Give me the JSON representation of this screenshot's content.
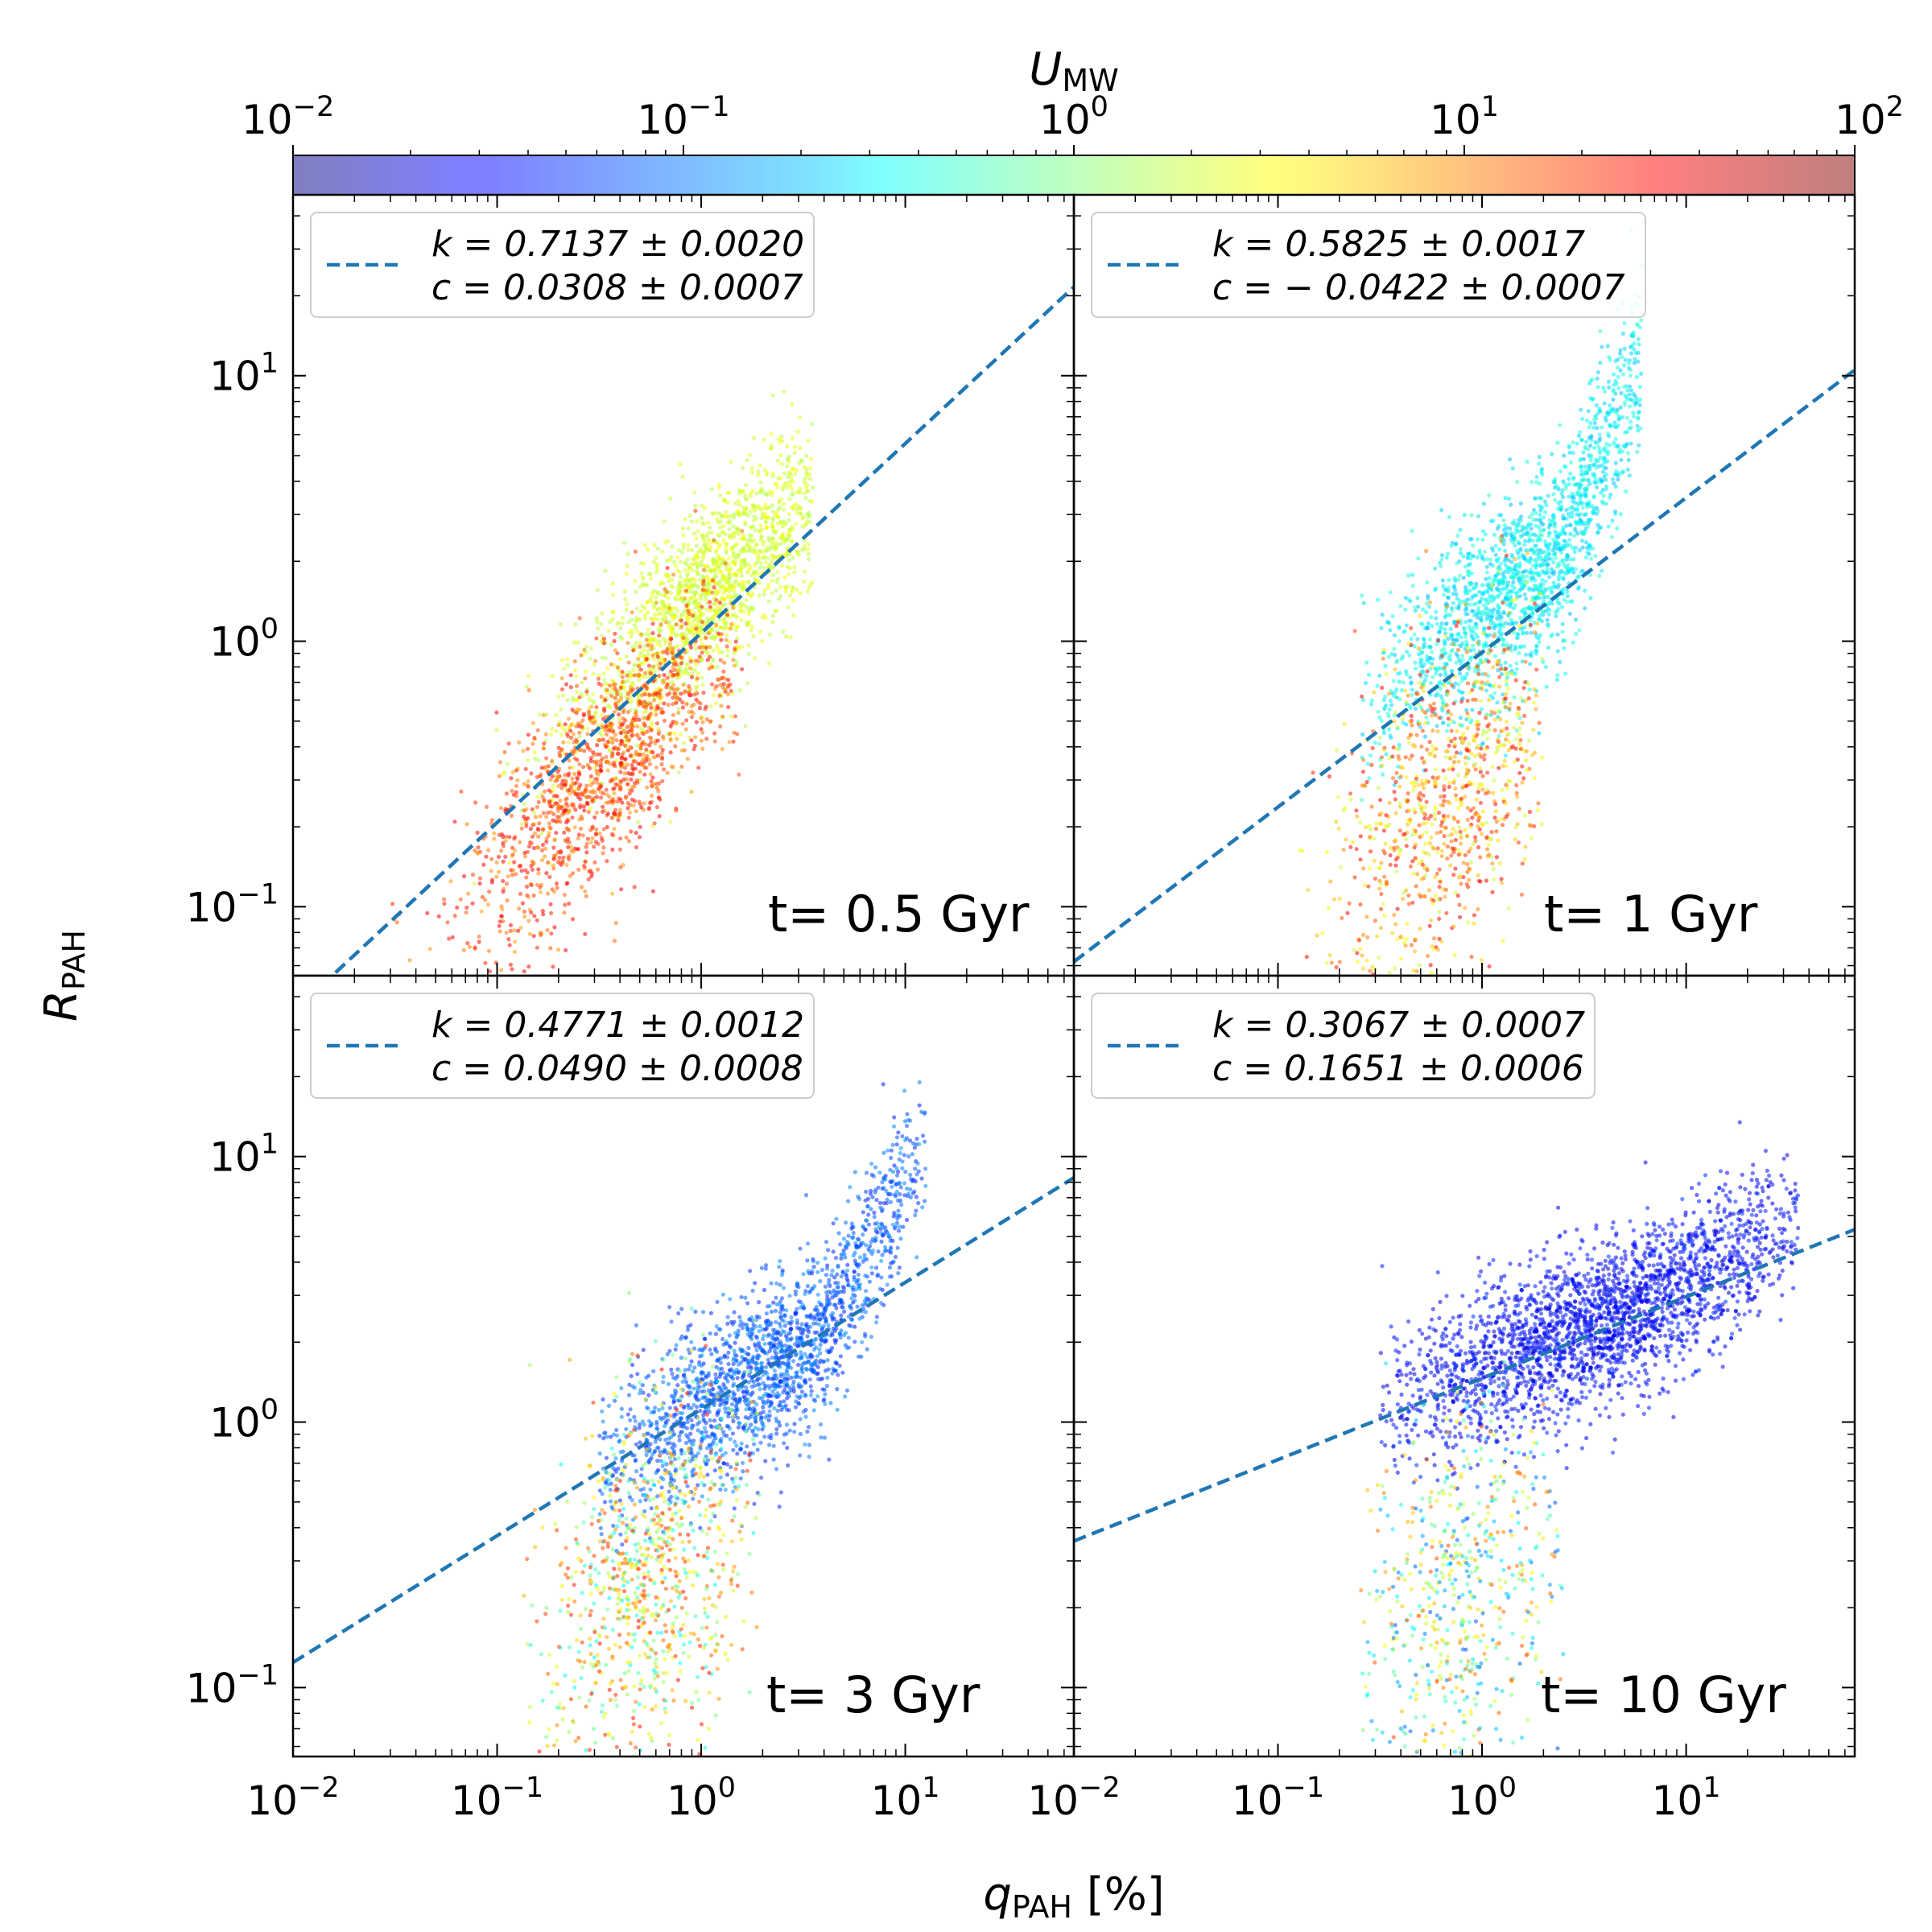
{
  "colorbar": {
    "label_main": "U",
    "label_sub": "MW",
    "scale": "log",
    "range": [
      0.01,
      100
    ],
    "ticks": [
      {
        "base": "10",
        "exp": "−2"
      },
      {
        "base": "10",
        "exp": "−1"
      },
      {
        "base": "10",
        "exp": "0"
      },
      {
        "base": "10",
        "exp": "1"
      },
      {
        "base": "10",
        "exp": "2"
      }
    ],
    "colormap": "jet (alpha 0.5)"
  },
  "axes": {
    "xlabel_main": "q",
    "xlabel_sub": "PAH",
    "xlabel_unit": " [%]",
    "ylabel_main": "R",
    "ylabel_sub": "PAH",
    "x_ticks": [
      {
        "base": "10",
        "exp": "−2"
      },
      {
        "base": "10",
        "exp": "−1"
      },
      {
        "base": "10",
        "exp": "0"
      },
      {
        "base": "10",
        "exp": "1"
      }
    ],
    "y_ticks": [
      {
        "base": "10",
        "exp": "−1"
      },
      {
        "base": "10",
        "exp": "0"
      },
      {
        "base": "10",
        "exp": "1"
      }
    ]
  },
  "chart_data": [
    {
      "type": "scatter",
      "panel": "top-left",
      "annotation": "t= 0.5 Gyr",
      "x_scale": "log",
      "y_scale": "log",
      "xlim": [
        0.01,
        67
      ],
      "ylim": [
        0.055,
        48
      ],
      "legend": {
        "line1": "k = 0.7137 ± 0.0020",
        "line2": "c = 0.0308 ± 0.0007",
        "placement": "upper-left"
      },
      "fit": {
        "k": 0.7137,
        "c": 0.0308,
        "style": "dashed",
        "color": "#1f77b4"
      },
      "point_clusters": [
        {
          "x_range": [
            0.1,
            3.5
          ],
          "y_center_slope": 0.72,
          "y_center_at_x1": 0.8,
          "U_typical": 2.5,
          "description": "upper branch"
        },
        {
          "x_range": [
            0.02,
            1.5
          ],
          "U_typical": 15,
          "description": "lower branch, high U"
        }
      ]
    },
    {
      "type": "scatter",
      "panel": "top-right",
      "annotation": "t= 1 Gyr",
      "x_scale": "log",
      "y_scale": "log",
      "xlim": [
        0.01,
        67
      ],
      "ylim": [
        0.055,
        48
      ],
      "legend": {
        "line1": "k = 0.5825 ± 0.0017",
        "line2": "c = − 0.0422 ± 0.0007",
        "placement": "upper-left"
      },
      "fit": {
        "k": 0.5825,
        "c": -0.0422,
        "style": "dashed",
        "color": "#1f77b4"
      },
      "point_clusters": [
        {
          "x_range": [
            0.3,
            6
          ],
          "U_typical": 0.3,
          "description": "upper branch, low U"
        },
        {
          "x_range": [
            0.2,
            2
          ],
          "U_typical": 10,
          "description": "lower branch, high U"
        }
      ]
    },
    {
      "type": "scatter",
      "panel": "bottom-left",
      "annotation": "t= 3 Gyr",
      "x_scale": "log",
      "y_scale": "log",
      "xlim": [
        0.01,
        67
      ],
      "ylim": [
        0.055,
        48
      ],
      "legend": {
        "line1": "k = 0.4771 ± 0.0012",
        "line2": "c = 0.0490 ± 0.0008",
        "placement": "upper-left"
      },
      "fit": {
        "k": 0.4771,
        "c": 0.049,
        "style": "dashed",
        "color": "#1f77b4"
      },
      "point_clusters": [
        {
          "x_range": [
            0.4,
            12
          ],
          "U_typical": 0.07,
          "description": "upper branch, low U"
        },
        {
          "x_range": [
            0.2,
            2
          ],
          "U_typical": 3,
          "description": "lower tail, mixed U"
        }
      ]
    },
    {
      "type": "scatter",
      "panel": "bottom-right",
      "annotation": "t= 10 Gyr",
      "x_scale": "log",
      "y_scale": "log",
      "xlim": [
        0.01,
        67
      ],
      "ylim": [
        0.055,
        48
      ],
      "legend": {
        "line1": "k = 0.3067 ± 0.0007",
        "line2": "c = 0.1651 ± 0.0006",
        "placement": "upper-left"
      },
      "fit": {
        "k": 0.3067,
        "c": 0.1651,
        "style": "dashed",
        "color": "#1f77b4"
      },
      "point_clusters": [
        {
          "x_range": [
            0.3,
            40
          ],
          "U_typical": 0.02,
          "description": "main branch, very low U"
        },
        {
          "x_range": [
            0.3,
            2
          ],
          "U_typical": 1,
          "description": "lower tail, mixed U"
        }
      ]
    }
  ]
}
